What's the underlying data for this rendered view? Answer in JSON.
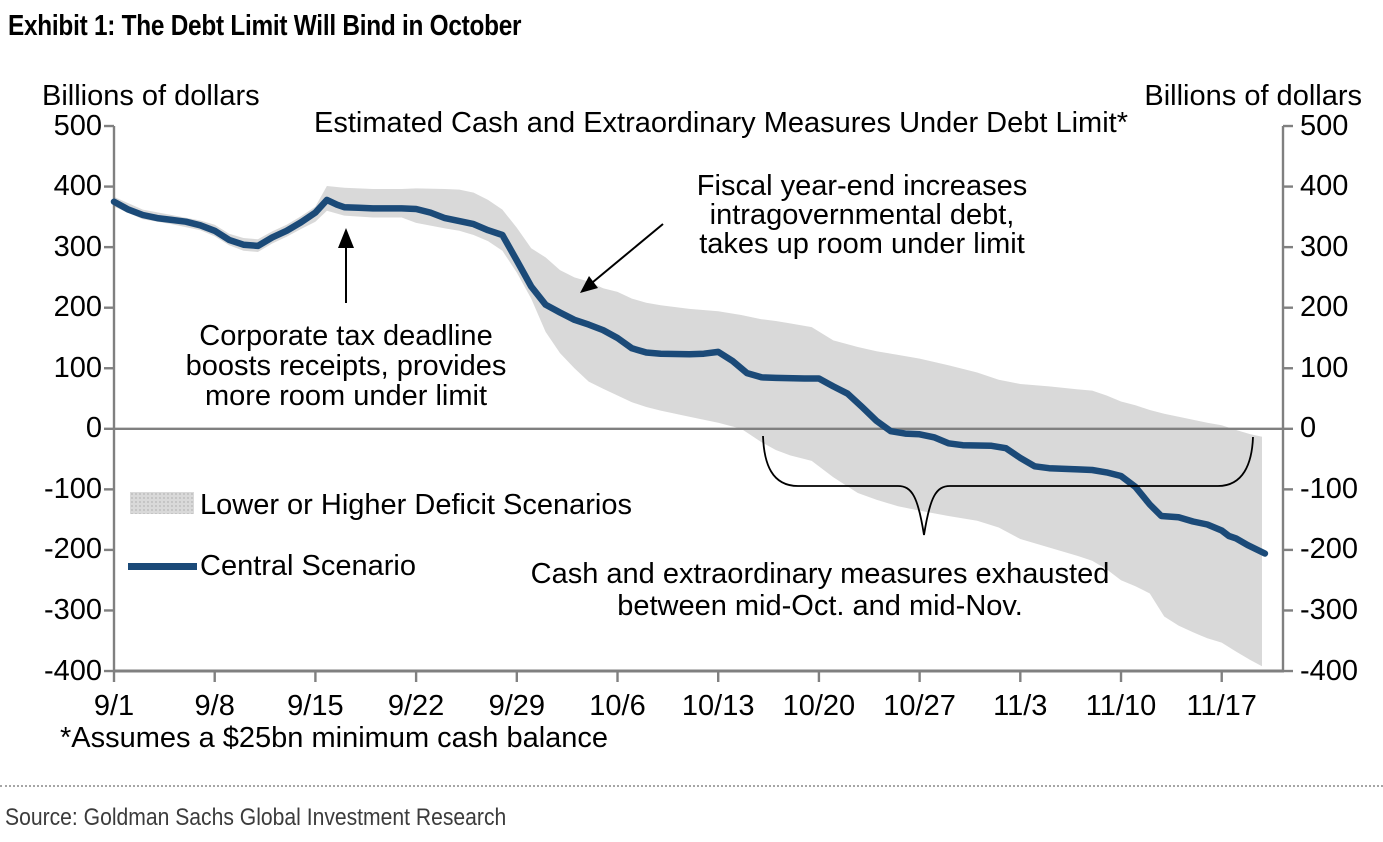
{
  "title": "Exhibit 1: The Debt Limit Will Bind in October",
  "subtitle": "Estimated Cash and Extraordinary Measures Under Debt Limit*",
  "unit_label_left": "Billions of dollars",
  "unit_label_right": "Billions of dollars",
  "footnote": "*Assumes a $25bn minimum cash balance",
  "source": "Source: Goldman Sachs Global Investment Research",
  "legend": {
    "band_label": "Lower or Higher Deficit Scenarios",
    "line_label": "Central Scenario"
  },
  "annotations": {
    "corporate": {
      "line1": "Corporate tax deadline",
      "line2": "boosts receipts, provides",
      "line3": "more room under limit"
    },
    "fiscal": {
      "line1": "Fiscal year-end increases",
      "line2": "intragovernmental debt,",
      "line3": "takes up room under limit"
    },
    "exhausted": {
      "line1": "Cash and extraordinary measures exhausted",
      "line2": "between mid-Oct. and mid-Nov."
    }
  },
  "colors": {
    "central_line": "#1b4a78",
    "band": "#d9d9d9",
    "axis": "#808080",
    "zero_line": "#808080",
    "annotation": "#000000"
  },
  "chart_data": {
    "type": "line",
    "title": "Estimated Cash and Extraordinary Measures Under Debt Limit*",
    "xlabel": "",
    "ylabel": "Billions of dollars",
    "ylim": [
      -400,
      500
    ],
    "grid": false,
    "legend_position": "left-middle-inside",
    "y_ticks": [
      500,
      400,
      300,
      200,
      100,
      0,
      -100,
      -200,
      -300,
      -400
    ],
    "x_ticks": [
      {
        "label": "9/1",
        "day": 0
      },
      {
        "label": "9/8",
        "day": 7
      },
      {
        "label": "9/15",
        "day": 14
      },
      {
        "label": "9/22",
        "day": 21
      },
      {
        "label": "9/29",
        "day": 28
      },
      {
        "label": "10/6",
        "day": 35
      },
      {
        "label": "10/13",
        "day": 42
      },
      {
        "label": "10/20",
        "day": 49
      },
      {
        "label": "10/27",
        "day": 56
      },
      {
        "label": "11/3",
        "day": 63
      },
      {
        "label": "11/10",
        "day": 70
      },
      {
        "label": "11/17",
        "day": 77
      }
    ],
    "series": [
      {
        "name": "Central Scenario",
        "type": "line",
        "color": "#1b4a78",
        "points_day_value": [
          [
            0,
            375
          ],
          [
            1,
            362
          ],
          [
            2,
            353
          ],
          [
            3,
            348
          ],
          [
            4,
            345
          ],
          [
            5,
            342
          ],
          [
            6,
            336
          ],
          [
            7,
            327
          ],
          [
            8,
            312
          ],
          [
            9,
            304
          ],
          [
            10,
            302
          ],
          [
            11,
            316
          ],
          [
            12,
            327
          ],
          [
            13,
            341
          ],
          [
            14,
            357
          ],
          [
            14.8,
            378
          ],
          [
            15.5,
            370
          ],
          [
            16,
            366
          ],
          [
            17,
            365
          ],
          [
            18,
            364
          ],
          [
            20,
            364
          ],
          [
            21,
            363
          ],
          [
            22,
            357
          ],
          [
            23,
            348
          ],
          [
            24,
            343
          ],
          [
            25,
            338
          ],
          [
            26,
            328
          ],
          [
            27,
            320
          ],
          [
            28,
            278
          ],
          [
            29,
            235
          ],
          [
            30,
            205
          ],
          [
            31,
            192
          ],
          [
            32,
            180
          ],
          [
            33,
            172
          ],
          [
            34,
            163
          ],
          [
            35,
            150
          ],
          [
            36,
            133
          ],
          [
            37,
            126
          ],
          [
            38,
            124
          ],
          [
            40,
            123
          ],
          [
            41,
            124
          ],
          [
            42,
            127
          ],
          [
            43,
            112
          ],
          [
            44,
            92
          ],
          [
            45,
            85
          ],
          [
            46,
            84
          ],
          [
            48,
            83
          ],
          [
            49,
            83
          ],
          [
            50,
            70
          ],
          [
            51,
            58
          ],
          [
            52,
            36
          ],
          [
            53,
            13
          ],
          [
            54,
            -4
          ],
          [
            55,
            -8
          ],
          [
            56,
            -9
          ],
          [
            57,
            -14
          ],
          [
            58,
            -24
          ],
          [
            59,
            -27
          ],
          [
            61,
            -28
          ],
          [
            62,
            -32
          ],
          [
            63,
            -48
          ],
          [
            64,
            -62
          ],
          [
            65,
            -65
          ],
          [
            67,
            -67
          ],
          [
            68,
            -68
          ],
          [
            69,
            -72
          ],
          [
            70,
            -78
          ],
          [
            71,
            -96
          ],
          [
            72,
            -125
          ],
          [
            72.8,
            -144
          ],
          [
            74,
            -146
          ],
          [
            75,
            -153
          ],
          [
            76,
            -158
          ],
          [
            77,
            -168
          ],
          [
            77.5,
            -177
          ],
          [
            78,
            -181
          ],
          [
            78.8,
            -192
          ],
          [
            80,
            -206
          ]
        ]
      },
      {
        "name": "Lower or Higher Deficit Scenarios",
        "type": "band",
        "color": "#d9d9d9",
        "points_day_top_bottom": [
          [
            0,
            383,
            367
          ],
          [
            2,
            362,
            346
          ],
          [
            4,
            353,
            338
          ],
          [
            6,
            344,
            328
          ],
          [
            7,
            337,
            318
          ],
          [
            8,
            322,
            303
          ],
          [
            9,
            315,
            294
          ],
          [
            10,
            313,
            292
          ],
          [
            11,
            326,
            306
          ],
          [
            12,
            337,
            317
          ],
          [
            13,
            351,
            330
          ],
          [
            14,
            367,
            342
          ],
          [
            14.8,
            401,
            360
          ],
          [
            16,
            398,
            352
          ],
          [
            18,
            396,
            349
          ],
          [
            20,
            396,
            349
          ],
          [
            21,
            397,
            340
          ],
          [
            23,
            396,
            331
          ],
          [
            24,
            395,
            327
          ],
          [
            25,
            390,
            320
          ],
          [
            26,
            378,
            310
          ],
          [
            27,
            362,
            294
          ],
          [
            28,
            332,
            258
          ],
          [
            29,
            298,
            215
          ],
          [
            30,
            283,
            160
          ],
          [
            31,
            262,
            125
          ],
          [
            32,
            250,
            100
          ],
          [
            33,
            243,
            78
          ],
          [
            34,
            232,
            66
          ],
          [
            35,
            226,
            55
          ],
          [
            36,
            215,
            44
          ],
          [
            37,
            208,
            36
          ],
          [
            38,
            204,
            30
          ],
          [
            40,
            198,
            20
          ],
          [
            42,
            194,
            10
          ],
          [
            43.6,
            188,
            0
          ],
          [
            45,
            181,
            -22
          ],
          [
            46,
            178,
            -35
          ],
          [
            47,
            174,
            -44
          ],
          [
            48.5,
            168,
            -53
          ],
          [
            50,
            146,
            -80
          ],
          [
            51.7,
            135,
            -106
          ],
          [
            53,
            128,
            -117
          ],
          [
            54.5,
            122,
            -128
          ],
          [
            56,
            116,
            -135
          ],
          [
            58,
            105,
            -144
          ],
          [
            60,
            93,
            -152
          ],
          [
            61.5,
            81,
            -163
          ],
          [
            63,
            74,
            -182
          ],
          [
            65,
            70,
            -196
          ],
          [
            67,
            65,
            -210
          ],
          [
            68,
            63,
            -218
          ],
          [
            69,
            55,
            -232
          ],
          [
            70,
            45,
            -250
          ],
          [
            71,
            39,
            -260
          ],
          [
            72,
            31,
            -272
          ],
          [
            73,
            25,
            -310
          ],
          [
            74,
            20,
            -325
          ],
          [
            75,
            15,
            -336
          ],
          [
            76,
            10,
            -346
          ],
          [
            77,
            6,
            -353
          ],
          [
            78,
            -2,
            -368
          ],
          [
            79,
            -9,
            -382
          ],
          [
            79.8,
            -13,
            -392
          ]
        ]
      }
    ],
    "notes": [
      "Zero horizontal reference line across plot",
      "Brace below zero line spans mid-Oct. to mid-Nov. where scenarios cross zero"
    ]
  }
}
